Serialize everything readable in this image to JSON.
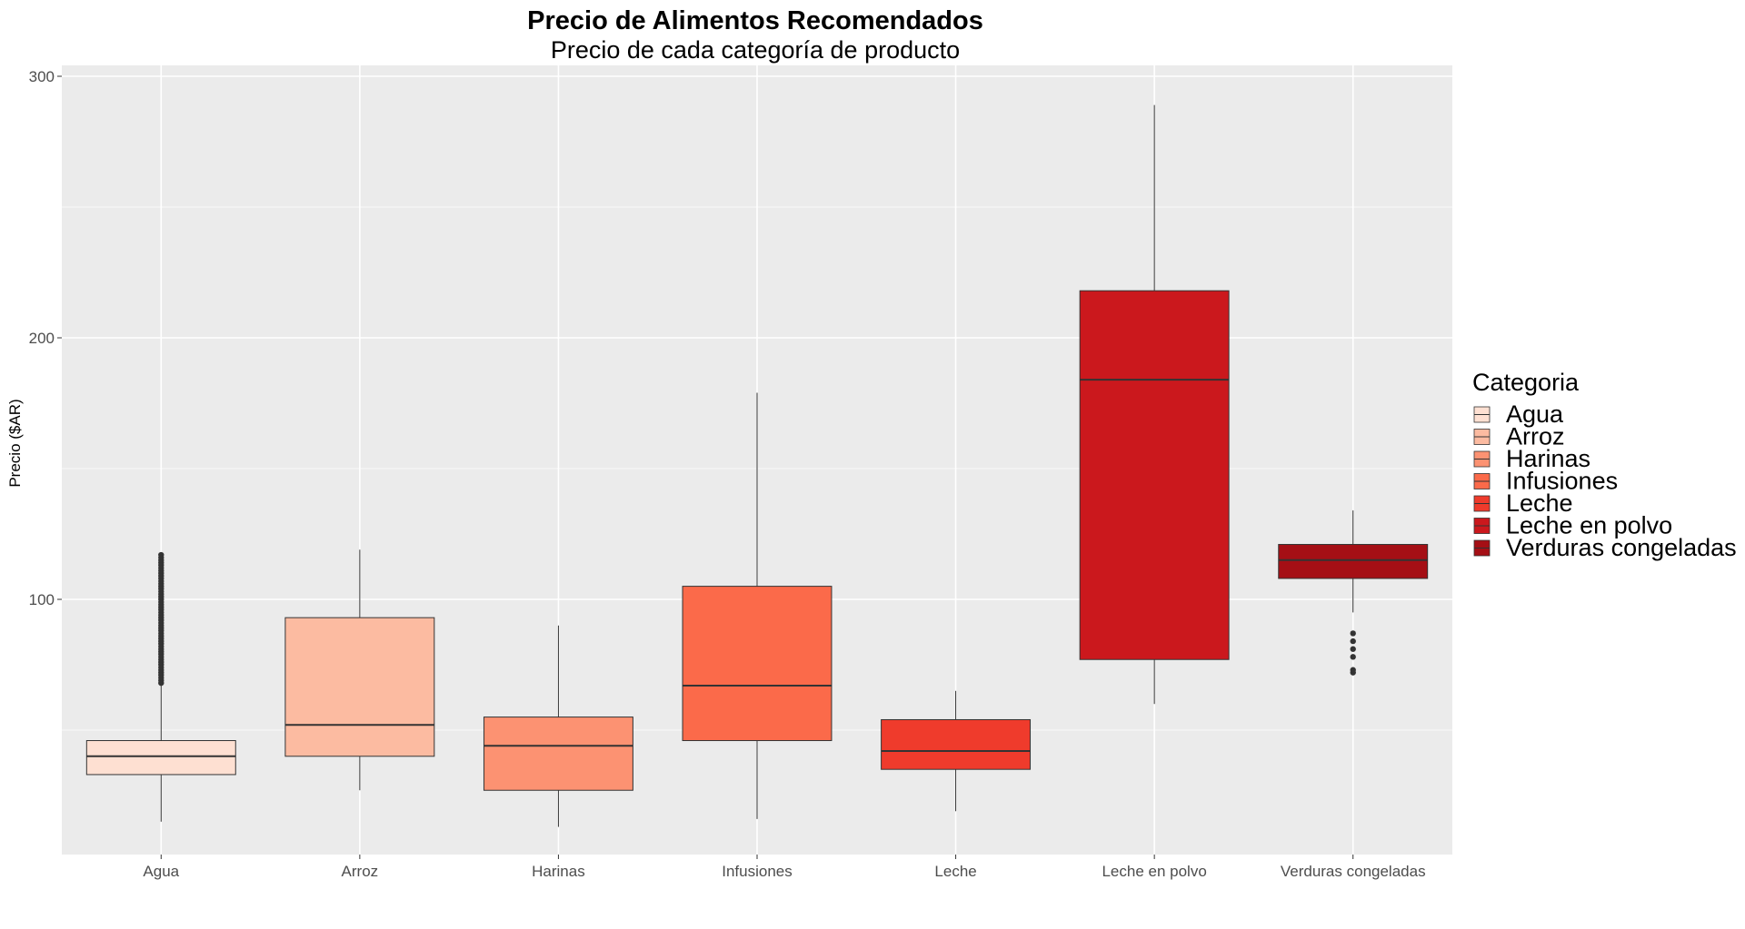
{
  "chart_data": {
    "type": "boxplot",
    "title": "Precio de Alimentos Recomendados",
    "subtitle": "Precio de cada categoría de producto",
    "xlabel": "",
    "ylabel": "Precio ($AR)",
    "ylim": [
      0,
      300
    ],
    "yticks": [
      100,
      200,
      300
    ],
    "grid": true,
    "legend": {
      "title": "Categoria",
      "position": "right"
    },
    "categories": [
      "Agua",
      "Arroz",
      "Harinas",
      "Infusiones",
      "Leche",
      "Leche en polvo",
      "Verduras congeladas"
    ],
    "series": [
      {
        "name": "Agua",
        "color": "#FEE0D2",
        "min": 15,
        "q1": 33,
        "median": 40,
        "q3": 46,
        "max": 67,
        "outliers": [
          68,
          69,
          70,
          71,
          72,
          73,
          74,
          75,
          76,
          77,
          78,
          79,
          80,
          81,
          82,
          83,
          84,
          85,
          86,
          87,
          88,
          89,
          90,
          91,
          92,
          93,
          94,
          95,
          96,
          97,
          98,
          99,
          100,
          101,
          102,
          103,
          104,
          105,
          106,
          107,
          108,
          109,
          110,
          111,
          112,
          113,
          114,
          115,
          116,
          117
        ]
      },
      {
        "name": "Arroz",
        "color": "#FCBBA1",
        "min": 27,
        "q1": 40,
        "median": 52,
        "q3": 93,
        "max": 119,
        "outliers": []
      },
      {
        "name": "Harinas",
        "color": "#FC9272",
        "min": 13,
        "q1": 27,
        "median": 44,
        "q3": 55,
        "max": 90,
        "outliers": []
      },
      {
        "name": "Infusiones",
        "color": "#FB6A4A",
        "min": 16,
        "q1": 46,
        "median": 67,
        "q3": 105,
        "max": 179,
        "outliers": []
      },
      {
        "name": "Leche",
        "color": "#EF3B2C",
        "min": 19,
        "q1": 35,
        "median": 42,
        "q3": 54,
        "max": 65,
        "outliers": []
      },
      {
        "name": "Leche en polvo",
        "color": "#CB181D",
        "min": 60,
        "q1": 77,
        "median": 184,
        "q3": 218,
        "max": 289,
        "outliers": []
      },
      {
        "name": "Verduras congeladas",
        "color": "#A50F15",
        "min": 95,
        "q1": 108,
        "median": 115,
        "q3": 121,
        "max": 134,
        "outliers": [
          72,
          73,
          78,
          81,
          84,
          87
        ]
      }
    ]
  }
}
